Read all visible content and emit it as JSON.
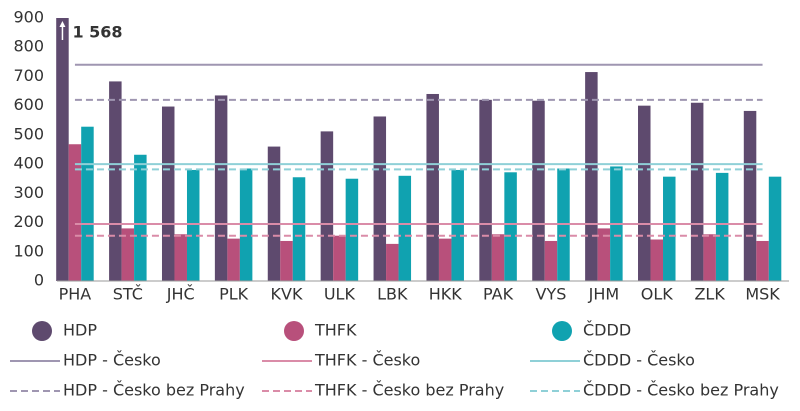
{
  "chart_data": {
    "type": "bar",
    "categories": [
      "PHA",
      "STČ",
      "JHČ",
      "PLK",
      "KVK",
      "ULK",
      "LBK",
      "HKK",
      "PAK",
      "VYS",
      "JHM",
      "OLK",
      "ZLK",
      "MSK"
    ],
    "series": [
      {
        "name": "HDP",
        "color": "#5e4a6e",
        "values": [
          1568,
          683,
          597,
          635,
          460,
          512,
          563,
          640,
          620,
          617,
          715,
          600,
          610,
          582
        ],
        "value_labels": [
          "1 568",
          null,
          null,
          null,
          null,
          null,
          null,
          null,
          null,
          null,
          null,
          null,
          null,
          null
        ]
      },
      {
        "name": "THFK",
        "color": "#b8507b",
        "values": [
          468,
          180,
          160,
          145,
          137,
          155,
          127,
          145,
          160,
          137,
          180,
          142,
          160,
          137
        ]
      },
      {
        "name": "ČDDD",
        "color": "#10a2b0",
        "values": [
          528,
          432,
          380,
          385,
          355,
          350,
          360,
          380,
          372,
          385,
          392,
          357,
          370,
          357
        ]
      }
    ],
    "reference_lines": [
      {
        "name": "HDP - Česko",
        "color": "#9f96b1",
        "dashed": false,
        "value": 740
      },
      {
        "name": "THFK - Česko",
        "color": "#da8ca8",
        "dashed": false,
        "value": 195
      },
      {
        "name": "ČDDD - Česko",
        "color": "#8fd0d7",
        "dashed": false,
        "value": 400
      },
      {
        "name": "HDP - Česko bez Prahy",
        "color": "#9f96b1",
        "dashed": true,
        "value": 620
      },
      {
        "name": "THFK - Česko bez Prahy",
        "color": "#da8ca8",
        "dashed": true,
        "value": 155
      },
      {
        "name": "ČDDD - Česko bez Prahy",
        "color": "#8fd0d7",
        "dashed": true,
        "value": 382
      }
    ],
    "ylim": [
      0,
      900
    ],
    "yticks": [
      0,
      100,
      200,
      300,
      400,
      500,
      600,
      700,
      800,
      900
    ]
  }
}
